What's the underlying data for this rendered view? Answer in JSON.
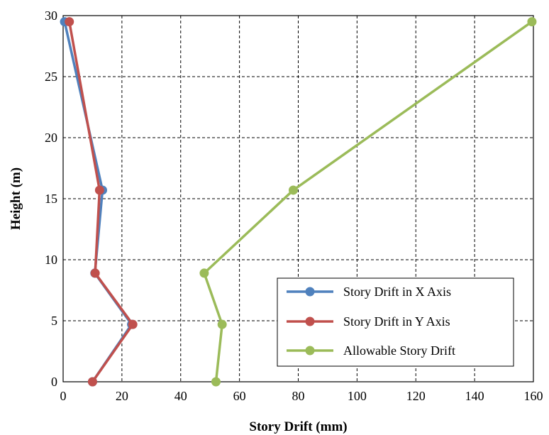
{
  "chart_data": {
    "type": "line",
    "title": "",
    "xlabel": "Story Drift (mm)",
    "ylabel": "Height (m)",
    "xlim": [
      0,
      160
    ],
    "ylim": [
      0,
      30
    ],
    "xticks": [
      0,
      20,
      40,
      60,
      80,
      100,
      120,
      140,
      160
    ],
    "yticks": [
      0,
      5,
      10,
      15,
      20,
      25,
      30
    ],
    "grid": true,
    "legend_position": "bottom-right",
    "series": [
      {
        "name": "Story Drift in X Axis",
        "color": "#4f81bd",
        "points": [
          {
            "x": 10.0,
            "y": 0
          },
          {
            "x": 23.3,
            "y": 4.7
          },
          {
            "x": 10.8,
            "y": 8.9
          },
          {
            "x": 13.4,
            "y": 15.7
          },
          {
            "x": 0.5,
            "y": 29.5
          }
        ]
      },
      {
        "name": "Story Drift in Y Axis",
        "color": "#c0504d",
        "points": [
          {
            "x": 10.0,
            "y": 0
          },
          {
            "x": 23.7,
            "y": 4.7
          },
          {
            "x": 10.9,
            "y": 8.9
          },
          {
            "x": 12.4,
            "y": 15.7
          },
          {
            "x": 2.1,
            "y": 29.5
          }
        ]
      },
      {
        "name": "Allowable Story Drift",
        "color": "#9bbb59",
        "points": [
          {
            "x": 52.0,
            "y": 0
          },
          {
            "x": 54.1,
            "y": 4.7
          },
          {
            "x": 48.0,
            "y": 8.9
          },
          {
            "x": 78.3,
            "y": 15.7
          },
          {
            "x": 159.5,
            "y": 29.5
          }
        ]
      }
    ]
  }
}
